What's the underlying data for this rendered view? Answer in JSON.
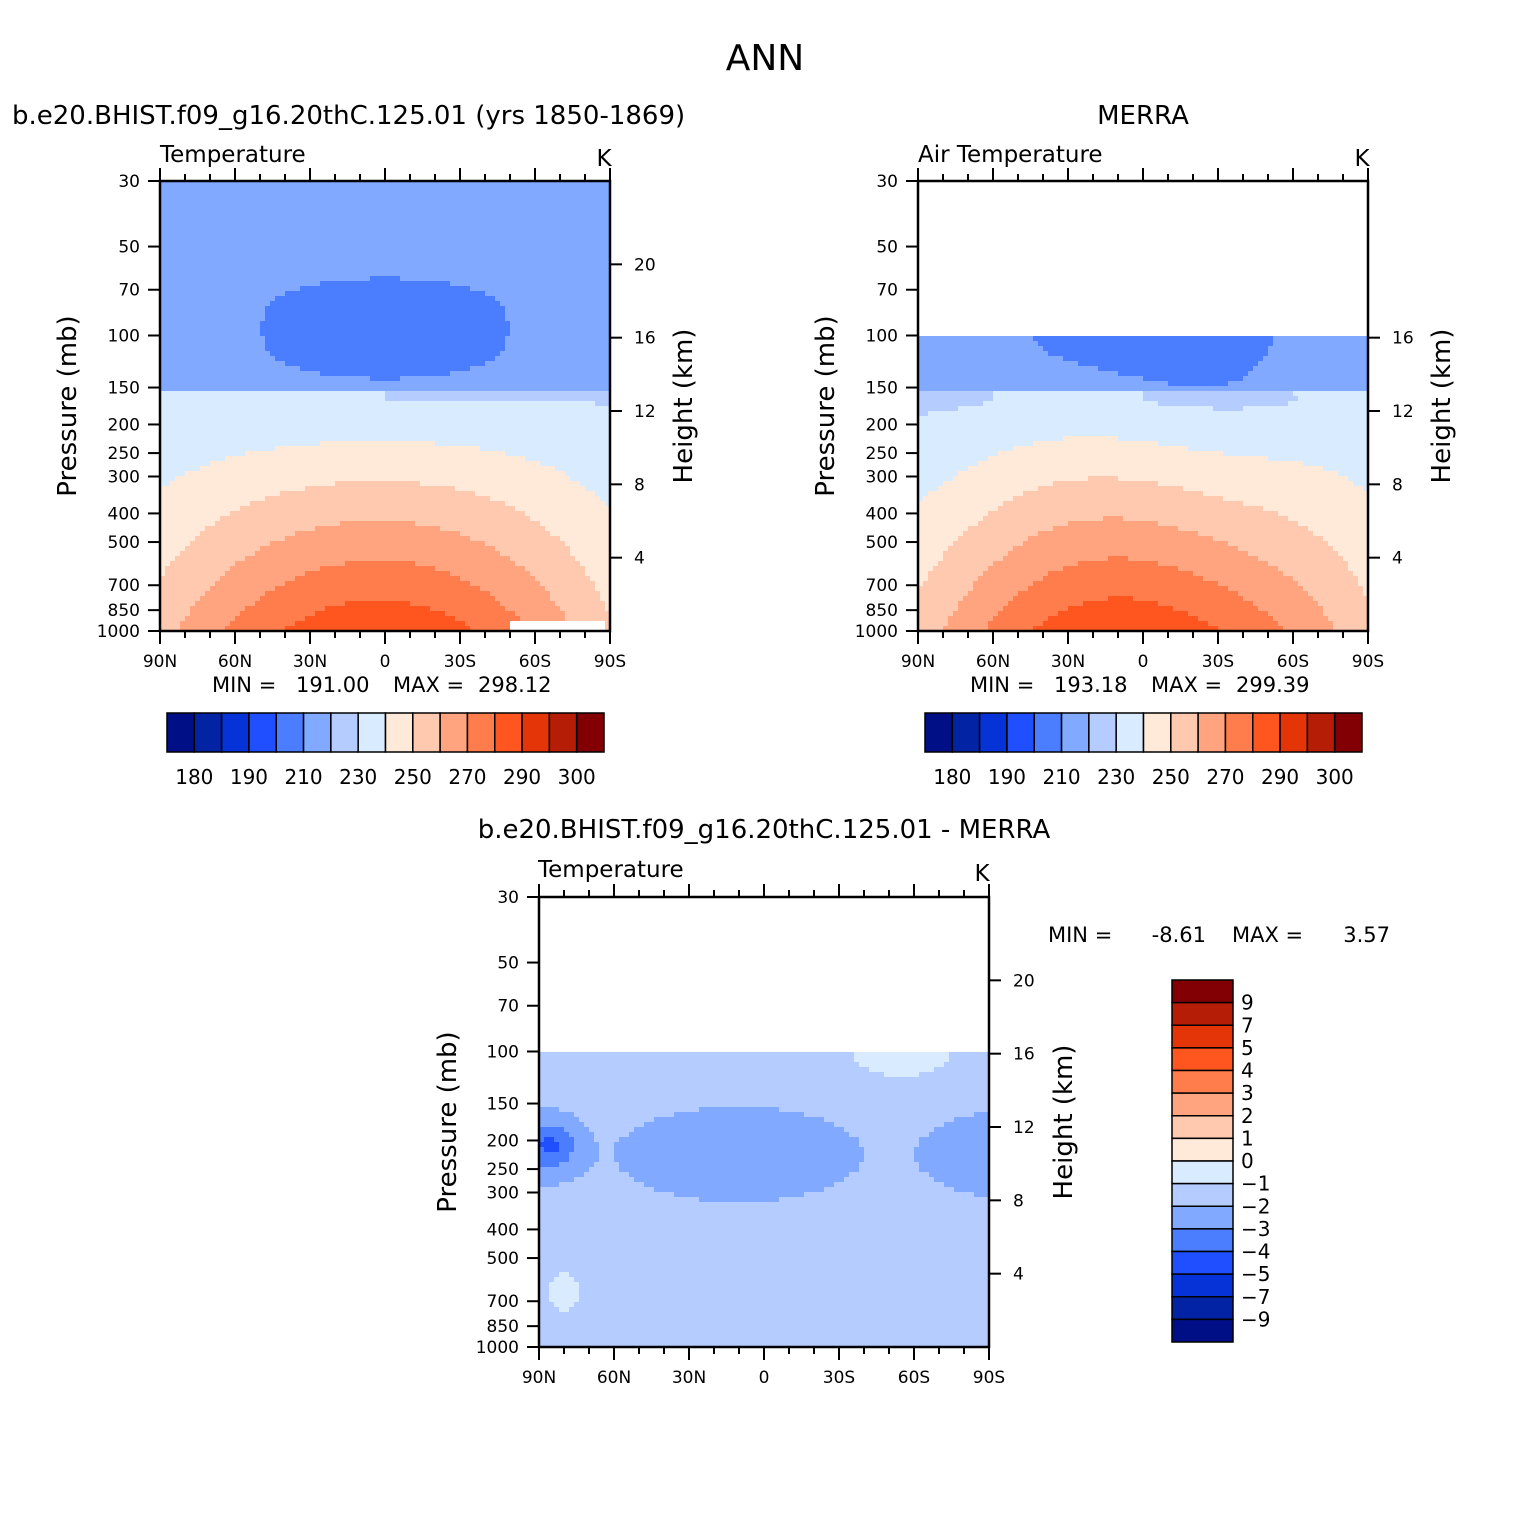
{
  "page": {
    "season": "ANN"
  },
  "palettes": {
    "abs_colors": [
      "#000f85",
      "#0323a5",
      "#0533d7",
      "#1f4fff",
      "#4a7dff",
      "#80a9ff",
      "#b4ccff",
      "#d9ebff",
      "#ffe9d9",
      "#ffc9b0",
      "#ffa47f",
      "#ff7d4c",
      "#ff561f",
      "#e33508",
      "#b61d06",
      "#820004"
    ],
    "diff_colors": [
      "#000f85",
      "#0323a5",
      "#0533d7",
      "#1f4fff",
      "#4a7dff",
      "#80a9ff",
      "#b4ccff",
      "#d9ebff",
      "#ffe9d9",
      "#ffc9b0",
      "#ffa47f",
      "#ff7d4c",
      "#ff561f",
      "#e33508",
      "#b61d06",
      "#820004"
    ],
    "missing": "#ffffff"
  },
  "chart_data": [
    {
      "type": "heatmap",
      "id": "model",
      "title": "b.e20.BHIST.f09_g16.20thC.125.01 (yrs 1850-1869)",
      "field_label": "Temperature",
      "units": "K",
      "xlabel": "",
      "ylabel": "Pressure (mb)",
      "ylabel_right": "Height (km)",
      "x_ticks": [
        "90N",
        "60N",
        "30N",
        "0",
        "30S",
        "60S",
        "90S"
      ],
      "y_ticks": [
        "30",
        "50",
        "70",
        "100",
        "150",
        "200",
        "250",
        "300",
        "400",
        "500",
        "700",
        "850",
        "1000"
      ],
      "y_ticks_right": [
        "20",
        "16",
        "12",
        "8",
        "4"
      ],
      "stats": {
        "min_label": "MIN =",
        "min": "191.00",
        "max_label": "MAX =",
        "max": "298.12"
      },
      "colorbar_labels": [
        "180",
        "190",
        "210",
        "230",
        "250",
        "270",
        "290",
        "300"
      ],
      "lat_range": [
        90,
        -90
      ],
      "p_range": [
        30,
        1000
      ]
    },
    {
      "type": "heatmap",
      "id": "obs",
      "title": "MERRA",
      "field_label": "Air Temperature",
      "units": "K",
      "xlabel": "",
      "ylabel": "Pressure (mb)",
      "ylabel_right": "Height (km)",
      "x_ticks": [
        "90N",
        "60N",
        "30N",
        "0",
        "30S",
        "60S",
        "90S"
      ],
      "y_ticks": [
        "30",
        "50",
        "70",
        "100",
        "150",
        "200",
        "250",
        "300",
        "400",
        "500",
        "700",
        "850",
        "1000"
      ],
      "y_ticks_right": [
        "16",
        "12",
        "8",
        "4"
      ],
      "stats": {
        "min_label": "MIN =",
        "min": "193.18",
        "max_label": "MAX =",
        "max": "299.39"
      },
      "colorbar_labels": [
        "180",
        "190",
        "210",
        "230",
        "250",
        "270",
        "290",
        "300"
      ],
      "lat_range": [
        90,
        -90
      ],
      "p_range": [
        30,
        1000
      ],
      "data_top_p": 100
    },
    {
      "type": "heatmap",
      "id": "diff",
      "title": "b.e20.BHIST.f09_g16.20thC.125.01 - MERRA",
      "field_label": "Temperature",
      "units": "K",
      "xlabel": "",
      "ylabel": "Pressure (mb)",
      "ylabel_right": "Height (km)",
      "x_ticks": [
        "90N",
        "60N",
        "30N",
        "0",
        "30S",
        "60S",
        "90S"
      ],
      "y_ticks": [
        "30",
        "50",
        "70",
        "100",
        "150",
        "200",
        "250",
        "300",
        "400",
        "500",
        "700",
        "850",
        "1000"
      ],
      "y_ticks_right": [
        "20",
        "16",
        "12",
        "8",
        "4"
      ],
      "stats": {
        "min_label": "MIN =",
        "min": "-8.61",
        "max_label": "MAX =",
        "max": "3.57"
      },
      "colorbar_labels": [
        "9",
        "7",
        "5",
        "4",
        "3",
        "2",
        "1",
        "0",
        "−1",
        "−2",
        "−3",
        "−4",
        "−5",
        "−7",
        "−9"
      ],
      "lat_range": [
        90,
        -90
      ],
      "p_range": [
        30,
        1000
      ],
      "data_top_p": 100
    }
  ]
}
